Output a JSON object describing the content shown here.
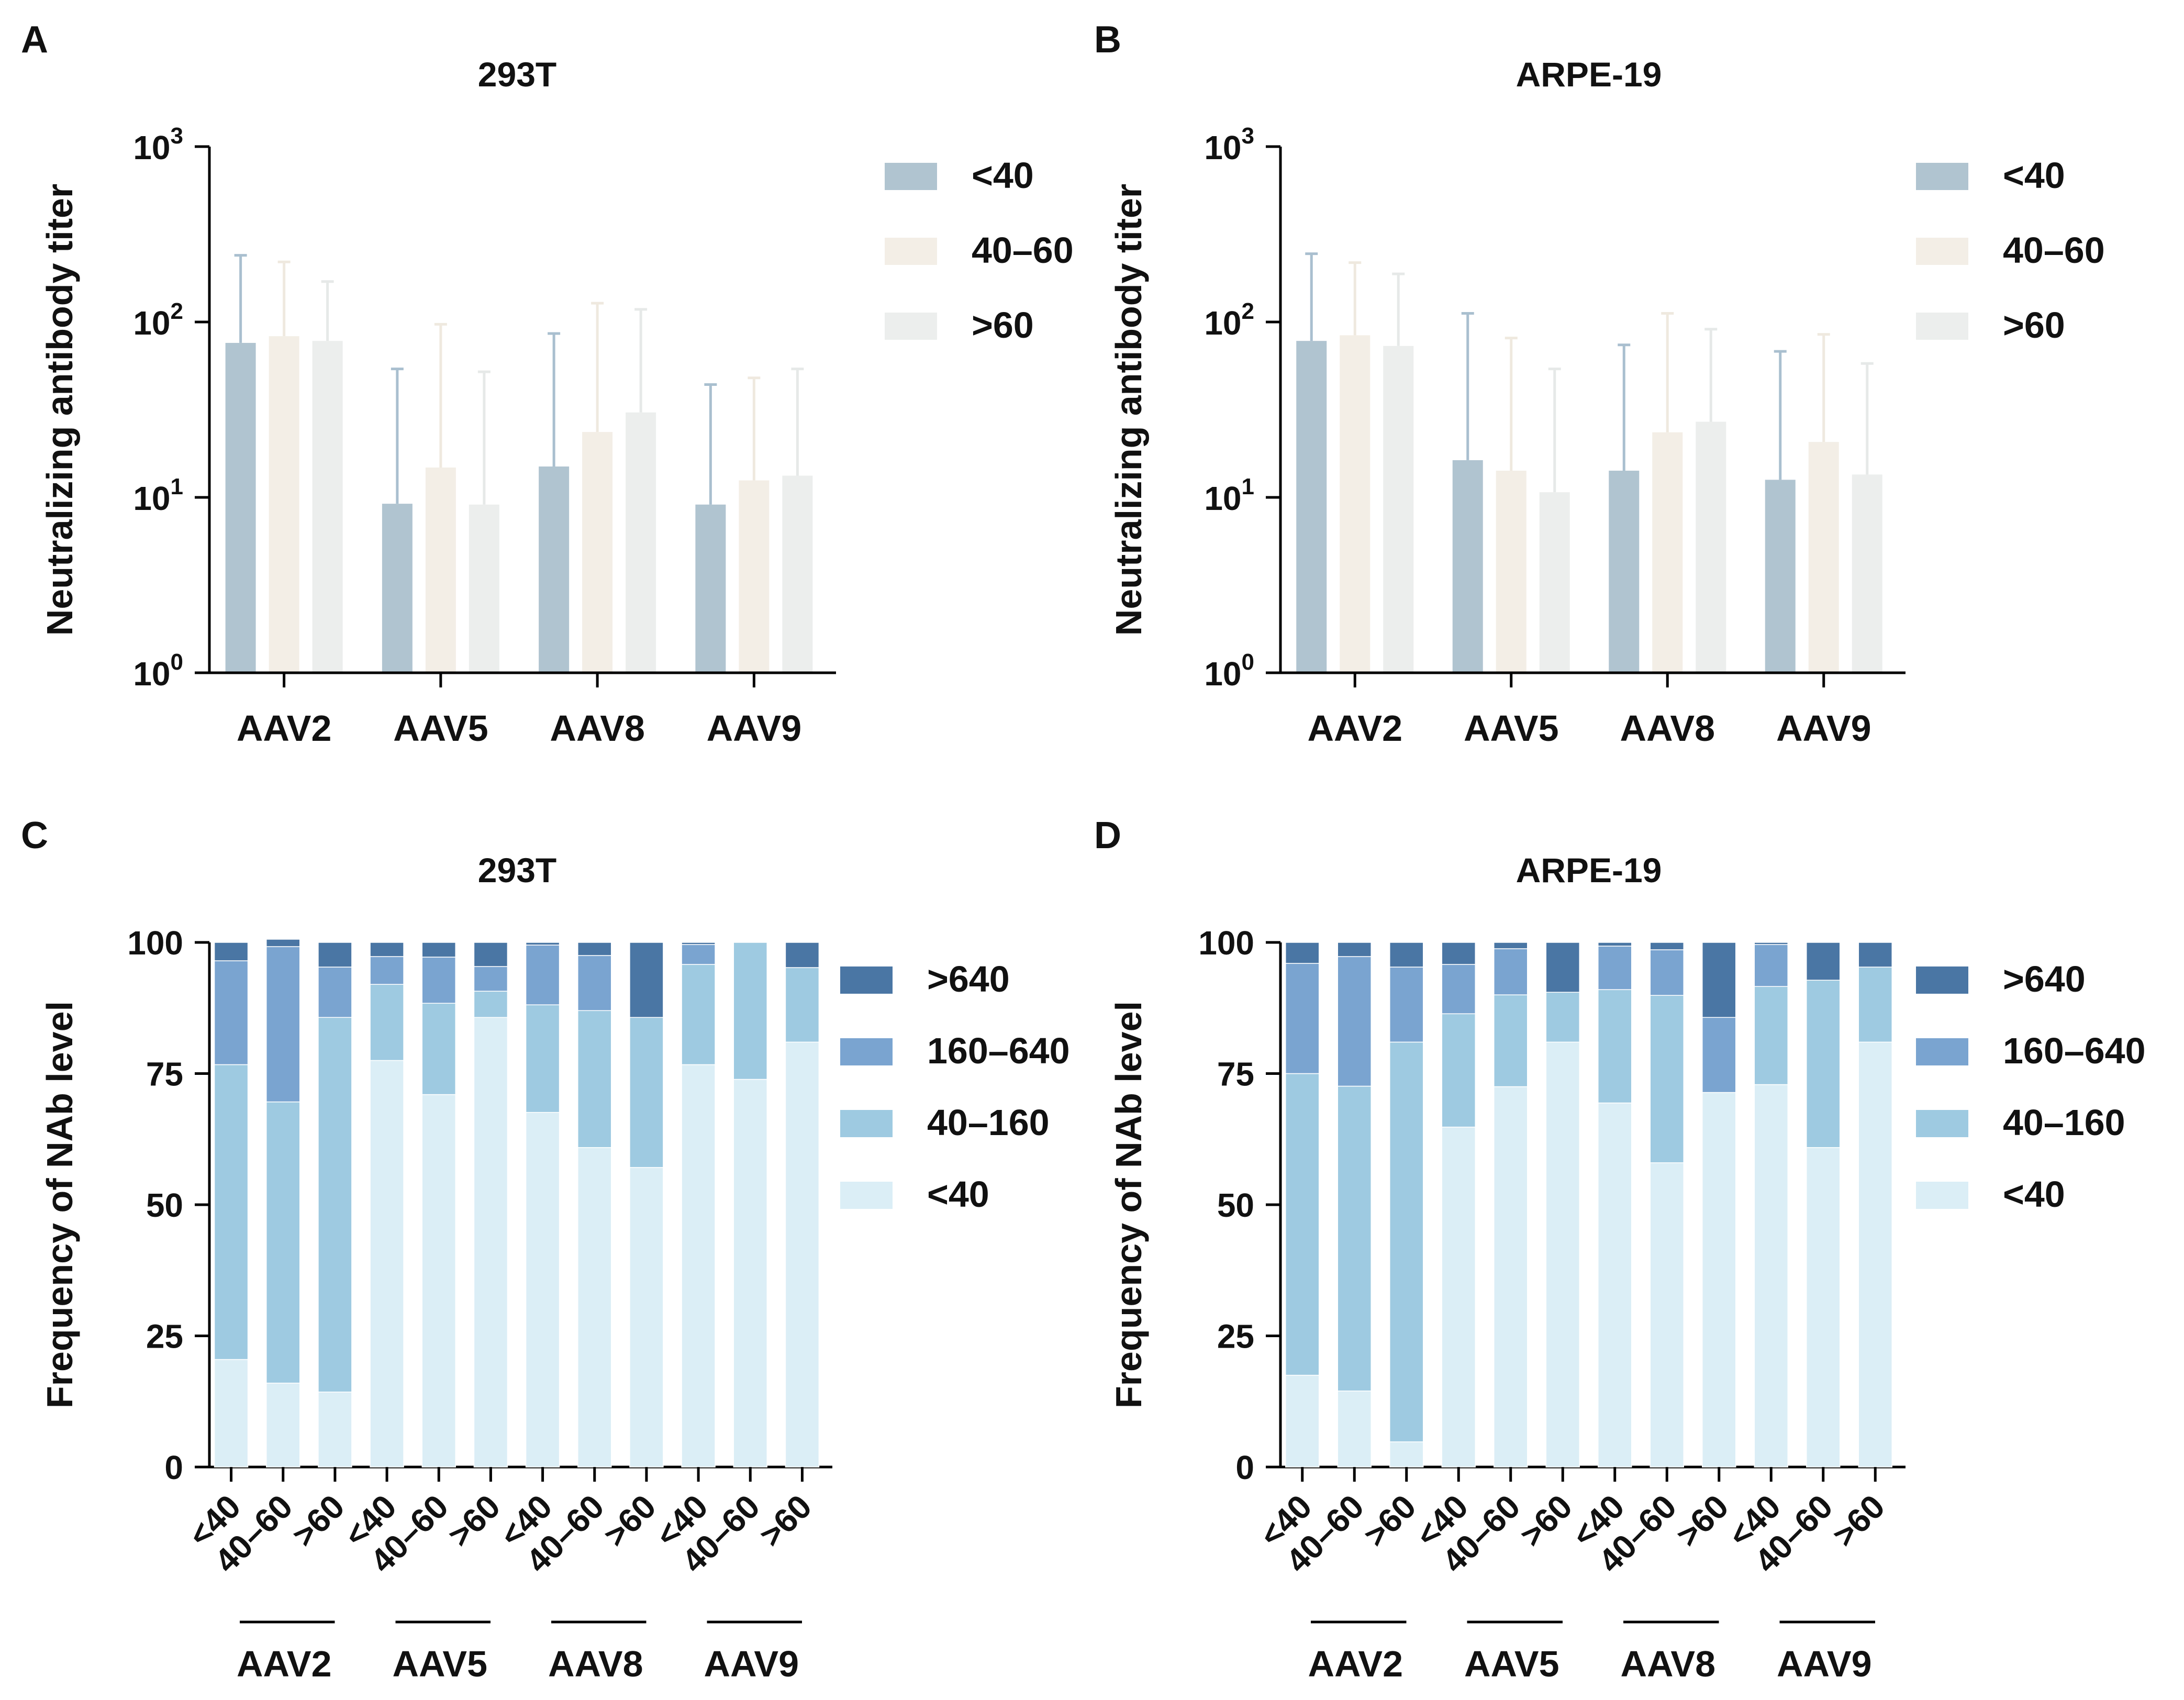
{
  "colors": {
    "titer_series": [
      "#b0c4d0",
      "#f3eee6",
      "#eceeed"
    ],
    "titer_err": [
      "#a9bfcf",
      "#efe9df",
      "#e6e9e8"
    ],
    "freq_series": [
      "#dbeef6",
      "#9ecae1",
      "#7aa4d0",
      "#4a76a4"
    ]
  },
  "chart_data": [
    {
      "panel": "A",
      "type": "bar",
      "title": "293T",
      "ylabel": "Neutralizing antibody titer",
      "yscale": "log10",
      "ylim": [
        1,
        1000
      ],
      "yticks": [
        {
          "b": "10",
          "e": "0"
        },
        {
          "b": "10",
          "e": "1"
        },
        {
          "b": "10",
          "e": "2"
        },
        {
          "b": "10",
          "e": "3"
        }
      ],
      "categories": [
        "AAV2",
        "AAV5",
        "AAV8",
        "AAV9"
      ],
      "series": [
        {
          "name": "<40",
          "values": [
            76,
            9.2,
            15,
            9.1
          ],
          "err_upper": [
            240,
            54,
            86,
            44
          ]
        },
        {
          "name": "40–60",
          "values": [
            83,
            14.8,
            23.6,
            12.5
          ],
          "err_upper": [
            220,
            97,
            128,
            48
          ]
        },
        {
          "name": ">60",
          "values": [
            78,
            9.1,
            30.5,
            13.3
          ],
          "err_upper": [
            170,
            52,
            118,
            54
          ]
        }
      ],
      "legend": [
        "<40",
        "40–60",
        ">60"
      ]
    },
    {
      "panel": "B",
      "type": "bar",
      "title": "ARPE-19",
      "ylabel": "Neutralizing antibody titer",
      "yscale": "log10",
      "ylim": [
        1,
        1000
      ],
      "yticks": [
        {
          "b": "10",
          "e": "0"
        },
        {
          "b": "10",
          "e": "1"
        },
        {
          "b": "10",
          "e": "2"
        },
        {
          "b": "10",
          "e": "3"
        }
      ],
      "categories": [
        "AAV2",
        "AAV5",
        "AAV8",
        "AAV9"
      ],
      "series": [
        {
          "name": "<40",
          "values": [
            78,
            16.3,
            14.2,
            12.6
          ],
          "err_upper": [
            245,
            112,
            74,
            68
          ]
        },
        {
          "name": "40–60",
          "values": [
            84,
            14.2,
            23.5,
            20.7
          ],
          "err_upper": [
            218,
            81,
            112,
            85
          ]
        },
        {
          "name": ">60",
          "values": [
            73,
            10.7,
            27,
            13.5
          ],
          "err_upper": [
            188,
            54,
            91,
            58
          ]
        }
      ],
      "legend": [
        "<40",
        "40–60",
        ">60"
      ]
    },
    {
      "panel": "C",
      "type": "bar",
      "stacked": true,
      "title": "293T",
      "ylabel": "Frequency of NAb level",
      "ylim": [
        0,
        100
      ],
      "yticks": [
        "0",
        "25",
        "50",
        "75",
        "100"
      ],
      "categories": [
        "<40",
        "40–60",
        ">60",
        "<40",
        "40–60",
        ">60",
        "<40",
        "40–60",
        ">60",
        "<40",
        "40–60",
        ">60"
      ],
      "groups": [
        "AAV2",
        "AAV5",
        "AAV8",
        "AAV9"
      ],
      "series": [
        {
          "name": "<40",
          "values": [
            20.5,
            16,
            14.3,
            77.5,
            71,
            85.7,
            67.6,
            60.9,
            57.1,
            76.7,
            73.9,
            81
          ]
        },
        {
          "name": "40–160",
          "values": [
            56.2,
            53.6,
            71.4,
            14.5,
            17.4,
            5,
            20.5,
            26.1,
            28.6,
            19.1,
            26.1,
            14.2
          ]
        },
        {
          "name": "160–640",
          "values": [
            19.8,
            29.6,
            9.6,
            5.3,
            8.8,
            4.7,
            11.4,
            10.5,
            0,
            3.8,
            0,
            0
          ]
        },
        {
          "name": ">640",
          "values": [
            3.5,
            1.4,
            4.7,
            2.7,
            2.8,
            4.6,
            0.5,
            2.5,
            14.3,
            0.4,
            0,
            4.8
          ]
        }
      ],
      "legend": [
        ">640",
        "160–640",
        "40–160",
        "<40"
      ]
    },
    {
      "panel": "D",
      "type": "bar",
      "stacked": true,
      "title": "ARPE-19",
      "ylabel": "Frequency of NAb level",
      "ylim": [
        0,
        100
      ],
      "yticks": [
        "0",
        "25",
        "50",
        "75",
        "100"
      ],
      "categories": [
        "<40",
        "40–60",
        ">60",
        "<40",
        "40–60",
        ">60",
        "<40",
        "40–60",
        ">60",
        "<40",
        "40–60",
        ">60"
      ],
      "groups": [
        "AAV2",
        "AAV5",
        "AAV8",
        "AAV9"
      ],
      "series": [
        {
          "name": "<40",
          "values": [
            17.5,
            14.5,
            4.8,
            64.8,
            72.5,
            81,
            69.4,
            58,
            71.4,
            72.9,
            60.9,
            81
          ]
        },
        {
          "name": "40–160",
          "values": [
            57.5,
            58.1,
            76.2,
            21.6,
            17.5,
            9.5,
            21.6,
            31.9,
            0,
            18.7,
            31.9,
            14.3
          ]
        },
        {
          "name": "160–640",
          "values": [
            21,
            24.7,
            14.3,
            9.4,
            8.8,
            0,
            8.3,
            8.7,
            14.3,
            8,
            0,
            0
          ]
        },
        {
          "name": ">640",
          "values": [
            4,
            2.7,
            4.7,
            4.2,
            1.2,
            9.5,
            0.7,
            1.4,
            14.3,
            0.4,
            7.2,
            4.7
          ]
        }
      ],
      "legend": [
        ">640",
        "160–640",
        "40–160",
        "<40"
      ]
    }
  ]
}
